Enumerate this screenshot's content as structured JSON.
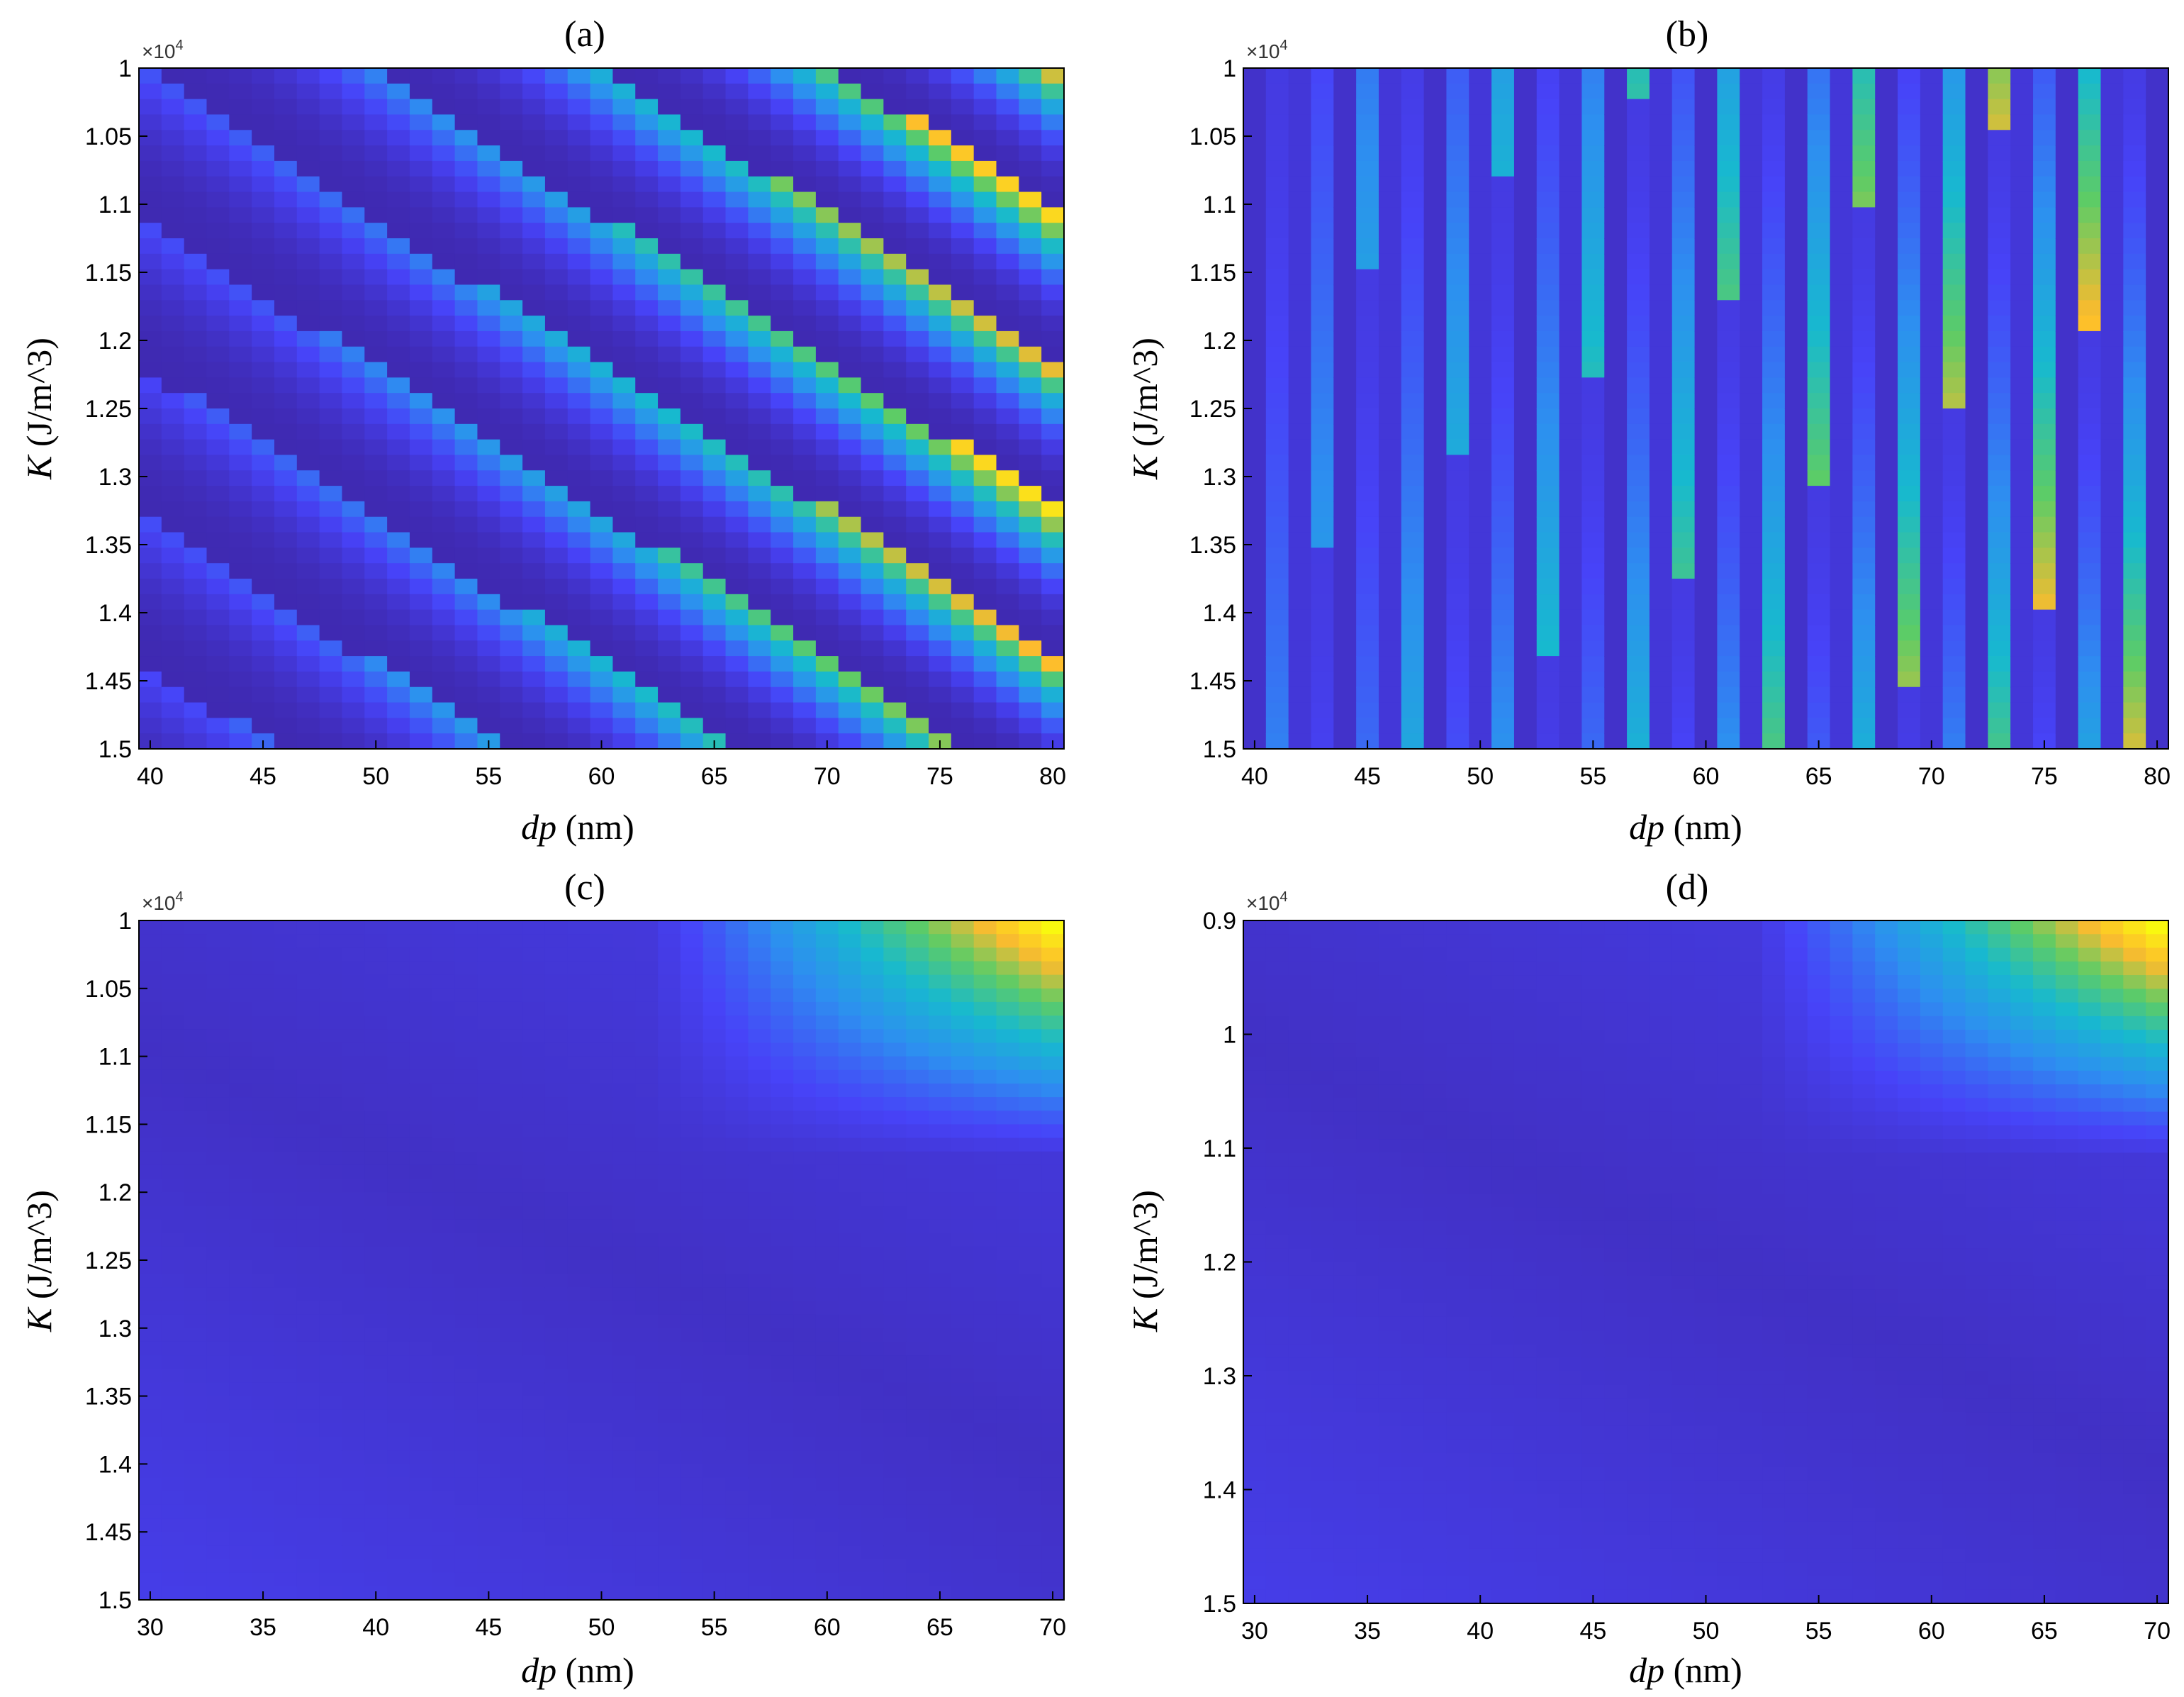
{
  "colormap": [
    "#3e26a8",
    "#4743f8",
    "#2d8ff0",
    "#17b9cf",
    "#5dcc66",
    "#fdbb2d",
    "#f9fb0e"
  ],
  "chart_data": [
    {
      "id": "a",
      "type": "heatmap",
      "title": "(a)",
      "xlabel_italic": "dp",
      "xlabel_unit": " (nm)",
      "ylabel_italic": "K",
      "ylabel_unit": " (J/m^3)",
      "y_exponent": "×10",
      "y_exponent_power": "4",
      "xlim": [
        39.5,
        80.5
      ],
      "ylim": [
        1.0,
        1.5
      ],
      "y_reversed": true,
      "xticks": [
        40,
        45,
        50,
        55,
        60,
        65,
        70,
        75,
        80
      ],
      "xtick_labels": [
        "40",
        "45",
        "50",
        "55",
        "60",
        "65",
        "70",
        "75",
        "80"
      ],
      "yticks": [
        1.0,
        1.05,
        1.1,
        1.15,
        1.2,
        1.25,
        1.3,
        1.35,
        1.4,
        1.45,
        1.5
      ],
      "ytick_labels": [
        "1",
        "1.05",
        "1.1",
        "1.15",
        "1.2",
        "1.25",
        "1.3",
        "1.35",
        "1.4",
        "1.45",
        "1.5"
      ],
      "pattern": "diagonal-bands",
      "nx": 41,
      "ny": 44
    },
    {
      "id": "b",
      "type": "heatmap",
      "title": "(b)",
      "xlabel_italic": "dp",
      "xlabel_unit": " (nm)",
      "ylabel_italic": "K",
      "ylabel_unit": " (J/m^3)",
      "y_exponent": "×10",
      "y_exponent_power": "4",
      "xlim": [
        39.5,
        80.5
      ],
      "ylim": [
        1.0,
        1.5
      ],
      "y_reversed": true,
      "xticks": [
        40,
        45,
        50,
        55,
        60,
        65,
        70,
        75,
        80
      ],
      "xtick_labels": [
        "40",
        "45",
        "50",
        "55",
        "60",
        "65",
        "70",
        "75",
        "80"
      ],
      "yticks": [
        1.0,
        1.05,
        1.1,
        1.15,
        1.2,
        1.25,
        1.3,
        1.35,
        1.4,
        1.45,
        1.5
      ],
      "ytick_labels": [
        "1",
        "1.05",
        "1.1",
        "1.15",
        "1.2",
        "1.25",
        "1.3",
        "1.35",
        "1.4",
        "1.45",
        "1.5"
      ],
      "pattern": "vertical-stripes",
      "nx": 41,
      "ny": 44
    },
    {
      "id": "c",
      "type": "heatmap",
      "title": "(c)",
      "xlabel_italic": "dp",
      "xlabel_unit": " (nm)",
      "ylabel_italic": "K",
      "ylabel_unit": " (J/m^3)",
      "y_exponent": "×10",
      "y_exponent_power": "4",
      "xlim": [
        29.5,
        70.5
      ],
      "ylim": [
        1.0,
        1.5
      ],
      "y_reversed": true,
      "xticks": [
        30,
        35,
        40,
        45,
        50,
        55,
        60,
        65,
        70
      ],
      "xtick_labels": [
        "30",
        "35",
        "40",
        "45",
        "50",
        "55",
        "60",
        "65",
        "70"
      ],
      "yticks": [
        1.0,
        1.05,
        1.1,
        1.15,
        1.2,
        1.25,
        1.3,
        1.35,
        1.4,
        1.45,
        1.5
      ],
      "ytick_labels": [
        "1",
        "1.05",
        "1.1",
        "1.15",
        "1.2",
        "1.25",
        "1.3",
        "1.35",
        "1.4",
        "1.45",
        "1.5"
      ],
      "pattern": "smooth-gradient",
      "nx": 41,
      "ny": 50
    },
    {
      "id": "d",
      "type": "heatmap",
      "title": "(d)",
      "xlabel_italic": "dp",
      "xlabel_unit": " (nm)",
      "ylabel_italic": "K",
      "ylabel_unit": " (J/m^3)",
      "y_exponent": "×10",
      "y_exponent_power": "4",
      "xlim": [
        29.5,
        70.5
      ],
      "ylim": [
        0.9,
        1.5
      ],
      "y_reversed": true,
      "xticks": [
        30,
        35,
        40,
        45,
        50,
        55,
        60,
        65,
        70
      ],
      "xtick_labels": [
        "30",
        "35",
        "40",
        "45",
        "50",
        "55",
        "60",
        "65",
        "70"
      ],
      "yticks": [
        0.9,
        1.0,
        1.1,
        1.2,
        1.3,
        1.4,
        1.5
      ],
      "ytick_labels": [
        "0.9",
        "1",
        "1.1",
        "1.2",
        "1.3",
        "1.4",
        "1.5"
      ],
      "pattern": "smooth-gradient",
      "nx": 41,
      "ny": 50
    }
  ]
}
